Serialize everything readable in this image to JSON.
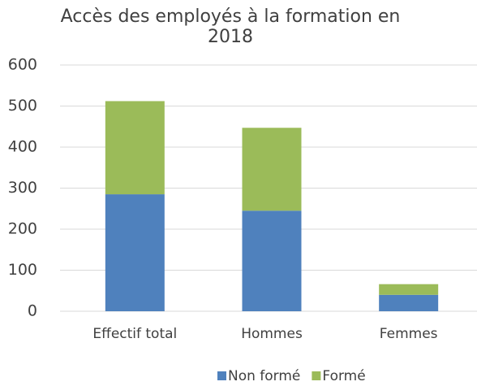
{
  "chart_data": {
    "type": "stacked_bar",
    "title": "Accès des employés à la formation en 2018",
    "categories": [
      "Effectif total",
      "Hommes",
      "Femmes"
    ],
    "series": [
      {
        "name": "Non formé",
        "color": "#4f81bd",
        "values": [
          285,
          245,
          40
        ]
      },
      {
        "name": "Formé",
        "color": "#9bbb59",
        "values": [
          227,
          202,
          26
        ]
      }
    ],
    "ylim": [
      0,
      600
    ],
    "yticks": [
      0,
      100,
      200,
      300,
      400,
      500,
      600
    ],
    "grid": true,
    "legend": "bottom"
  }
}
